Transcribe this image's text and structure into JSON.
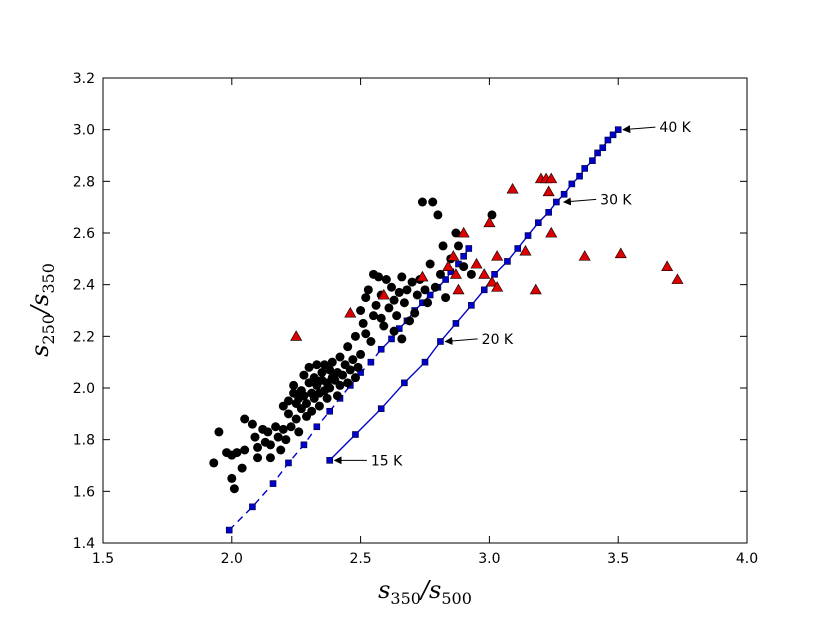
{
  "chart_data": {
    "type": "scatter",
    "xlabel": {
      "base": "s",
      "sub1": "350",
      "sep": "/",
      "base2": "s",
      "sub2": "500"
    },
    "ylabel": {
      "base": "s",
      "sub1": "250",
      "sep": "/",
      "base2": "s",
      "sub2": "350"
    },
    "xlim": [
      1.5,
      4.0
    ],
    "ylim": [
      1.4,
      3.2
    ],
    "x_ticks": [
      "1.5",
      "2.0",
      "2.5",
      "3.0",
      "3.5",
      "4.0"
    ],
    "y_ticks": [
      "1.4",
      "1.6",
      "1.8",
      "2.0",
      "2.2",
      "2.4",
      "2.6",
      "2.8",
      "3.0",
      "3.2"
    ],
    "grid": false,
    "colors": {
      "circles": "#000000",
      "triangles": "#dd0000",
      "model": "#0000cc"
    },
    "series": [
      {
        "marker": "circle",
        "points": [
          [
            1.93,
            1.71
          ],
          [
            1.95,
            1.83
          ],
          [
            1.98,
            1.75
          ],
          [
            2.0,
            1.74
          ],
          [
            2.0,
            1.65
          ],
          [
            2.01,
            1.61
          ],
          [
            2.02,
            1.75
          ],
          [
            2.04,
            1.69
          ],
          [
            2.05,
            1.76
          ],
          [
            2.05,
            1.88
          ],
          [
            2.08,
            1.86
          ],
          [
            2.09,
            1.81
          ],
          [
            2.1,
            1.77
          ],
          [
            2.1,
            1.73
          ],
          [
            2.12,
            1.84
          ],
          [
            2.13,
            1.79
          ],
          [
            2.14,
            1.83
          ],
          [
            2.15,
            1.73
          ],
          [
            2.15,
            1.78
          ],
          [
            2.17,
            1.85
          ],
          [
            2.18,
            1.81
          ],
          [
            2.19,
            1.76
          ],
          [
            2.2,
            1.84
          ],
          [
            2.2,
            1.93
          ],
          [
            2.21,
            1.8
          ],
          [
            2.22,
            1.9
          ],
          [
            2.22,
            1.95
          ],
          [
            2.23,
            1.85
          ],
          [
            2.24,
            1.98
          ],
          [
            2.24,
            2.01
          ],
          [
            2.25,
            1.94
          ],
          [
            2.25,
            1.88
          ],
          [
            2.26,
            1.96
          ],
          [
            2.26,
            1.83
          ],
          [
            2.27,
            1.99
          ],
          [
            2.27,
            1.92
          ],
          [
            2.28,
            2.05
          ],
          [
            2.28,
            1.97
          ],
          [
            2.29,
            1.89
          ],
          [
            2.29,
            1.94
          ],
          [
            2.3,
            2.02
          ],
          [
            2.3,
            2.08
          ],
          [
            2.31,
            1.98
          ],
          [
            2.31,
            1.91
          ],
          [
            2.32,
            2.04
          ],
          [
            2.32,
            1.96
          ],
          [
            2.33,
            2.01
          ],
          [
            2.33,
            2.09
          ],
          [
            2.34,
            1.93
          ],
          [
            2.34,
            1.98
          ],
          [
            2.35,
            2.06
          ],
          [
            2.35,
            2.03
          ],
          [
            2.36,
            1.99
          ],
          [
            2.36,
            2.09
          ],
          [
            2.37,
            2.02
          ],
          [
            2.37,
            1.96
          ],
          [
            2.38,
            2.07
          ],
          [
            2.38,
            2.0
          ],
          [
            2.39,
            2.04
          ],
          [
            2.39,
            2.1
          ],
          [
            2.4,
            2.03
          ],
          [
            2.41,
            1.97
          ],
          [
            2.41,
            2.06
          ],
          [
            2.42,
            2.01
          ],
          [
            2.42,
            2.12
          ],
          [
            2.43,
            2.05
          ],
          [
            2.44,
            2.09
          ],
          [
            2.45,
            2.02
          ],
          [
            2.45,
            2.16
          ],
          [
            2.46,
            2.07
          ],
          [
            2.47,
            2.11
          ],
          [
            2.48,
            2.04
          ],
          [
            2.48,
            2.2
          ],
          [
            2.49,
            2.08
          ],
          [
            2.5,
            2.13
          ],
          [
            2.5,
            2.3
          ],
          [
            2.51,
            2.25
          ],
          [
            2.52,
            2.21
          ],
          [
            2.52,
            2.35
          ],
          [
            2.53,
            2.38
          ],
          [
            2.54,
            2.18
          ],
          [
            2.55,
            2.28
          ],
          [
            2.55,
            2.44
          ],
          [
            2.56,
            2.32
          ],
          [
            2.57,
            2.43
          ],
          [
            2.58,
            2.27
          ],
          [
            2.58,
            2.36
          ],
          [
            2.59,
            2.24
          ],
          [
            2.6,
            2.42
          ],
          [
            2.61,
            2.31
          ],
          [
            2.62,
            2.39
          ],
          [
            2.63,
            2.22
          ],
          [
            2.63,
            2.34
          ],
          [
            2.64,
            2.28
          ],
          [
            2.65,
            2.37
          ],
          [
            2.66,
            2.19
          ],
          [
            2.66,
            2.43
          ],
          [
            2.67,
            2.33
          ],
          [
            2.68,
            2.38
          ],
          [
            2.69,
            2.26
          ],
          [
            2.7,
            2.41
          ],
          [
            2.71,
            2.29
          ],
          [
            2.72,
            2.36
          ],
          [
            2.73,
            2.42
          ],
          [
            2.74,
            2.72
          ],
          [
            2.75,
            2.38
          ],
          [
            2.76,
            2.33
          ],
          [
            2.77,
            2.48
          ],
          [
            2.78,
            2.72
          ],
          [
            2.79,
            2.39
          ],
          [
            2.8,
            2.67
          ],
          [
            2.81,
            2.44
          ],
          [
            2.82,
            2.55
          ],
          [
            2.83,
            2.35
          ],
          [
            2.85,
            2.5
          ],
          [
            2.87,
            2.6
          ],
          [
            2.88,
            2.55
          ],
          [
            2.9,
            2.47
          ],
          [
            2.93,
            2.44
          ],
          [
            3.01,
            2.67
          ]
        ]
      },
      {
        "marker": "triangle",
        "points": [
          [
            2.25,
            2.2
          ],
          [
            2.46,
            2.29
          ],
          [
            2.59,
            2.36
          ],
          [
            2.74,
            2.43
          ],
          [
            2.84,
            2.47
          ],
          [
            2.86,
            2.51
          ],
          [
            2.87,
            2.44
          ],
          [
            2.88,
            2.38
          ],
          [
            2.9,
            2.6
          ],
          [
            2.95,
            2.48
          ],
          [
            2.98,
            2.44
          ],
          [
            3.0,
            2.64
          ],
          [
            3.01,
            2.41
          ],
          [
            3.03,
            2.51
          ],
          [
            3.03,
            2.39
          ],
          [
            3.09,
            2.77
          ],
          [
            3.14,
            2.53
          ],
          [
            3.18,
            2.38
          ],
          [
            3.2,
            2.81
          ],
          [
            3.22,
            2.81
          ],
          [
            3.23,
            2.76
          ],
          [
            3.24,
            2.81
          ],
          [
            3.24,
            2.6
          ],
          [
            3.37,
            2.51
          ],
          [
            3.51,
            2.52
          ],
          [
            3.69,
            2.47
          ],
          [
            3.73,
            2.42
          ]
        ]
      }
    ],
    "model_lines": [
      {
        "style": "dashed",
        "points": [
          [
            1.99,
            1.45
          ],
          [
            2.08,
            1.54
          ],
          [
            2.16,
            1.63
          ],
          [
            2.22,
            1.71
          ],
          [
            2.28,
            1.78
          ],
          [
            2.33,
            1.85
          ],
          [
            2.38,
            1.91
          ],
          [
            2.42,
            1.96
          ],
          [
            2.46,
            2.01
          ],
          [
            2.5,
            2.06
          ],
          [
            2.54,
            2.1
          ],
          [
            2.58,
            2.15
          ],
          [
            2.62,
            2.19
          ],
          [
            2.65,
            2.23
          ],
          [
            2.68,
            2.26
          ],
          [
            2.71,
            2.3
          ],
          [
            2.74,
            2.33
          ],
          [
            2.77,
            2.36
          ],
          [
            2.8,
            2.39
          ],
          [
            2.83,
            2.42
          ],
          [
            2.85,
            2.45
          ],
          [
            2.88,
            2.48
          ],
          [
            2.9,
            2.51
          ],
          [
            2.92,
            2.54
          ]
        ]
      },
      {
        "style": "solid",
        "points": [
          [
            2.38,
            1.72
          ],
          [
            2.48,
            1.82
          ],
          [
            2.58,
            1.92
          ],
          [
            2.67,
            2.02
          ],
          [
            2.75,
            2.1
          ],
          [
            2.81,
            2.18
          ],
          [
            2.87,
            2.25
          ],
          [
            2.93,
            2.32
          ],
          [
            2.98,
            2.38
          ],
          [
            3.02,
            2.44
          ],
          [
            3.07,
            2.49
          ],
          [
            3.11,
            2.54
          ],
          [
            3.15,
            2.59
          ],
          [
            3.19,
            2.64
          ],
          [
            3.23,
            2.68
          ],
          [
            3.26,
            2.72
          ],
          [
            3.29,
            2.75
          ],
          [
            3.32,
            2.79
          ],
          [
            3.35,
            2.82
          ],
          [
            3.37,
            2.85
          ],
          [
            3.4,
            2.88
          ],
          [
            3.42,
            2.91
          ],
          [
            3.44,
            2.93
          ],
          [
            3.46,
            2.96
          ],
          [
            3.48,
            2.98
          ],
          [
            3.5,
            3.0
          ]
        ]
      }
    ],
    "annotations": [
      {
        "text": "40 K",
        "point": [
          3.5,
          3.0
        ],
        "label_at": [
          3.66,
          3.01
        ]
      },
      {
        "text": "30 K",
        "point": [
          3.27,
          2.72
        ],
        "label_at": [
          3.43,
          2.73
        ]
      },
      {
        "text": "20 K",
        "point": [
          2.81,
          2.18
        ],
        "label_at": [
          2.97,
          2.19
        ]
      },
      {
        "text": "15 K",
        "point": [
          2.38,
          1.72
        ],
        "label_at": [
          2.54,
          1.72
        ]
      }
    ]
  }
}
